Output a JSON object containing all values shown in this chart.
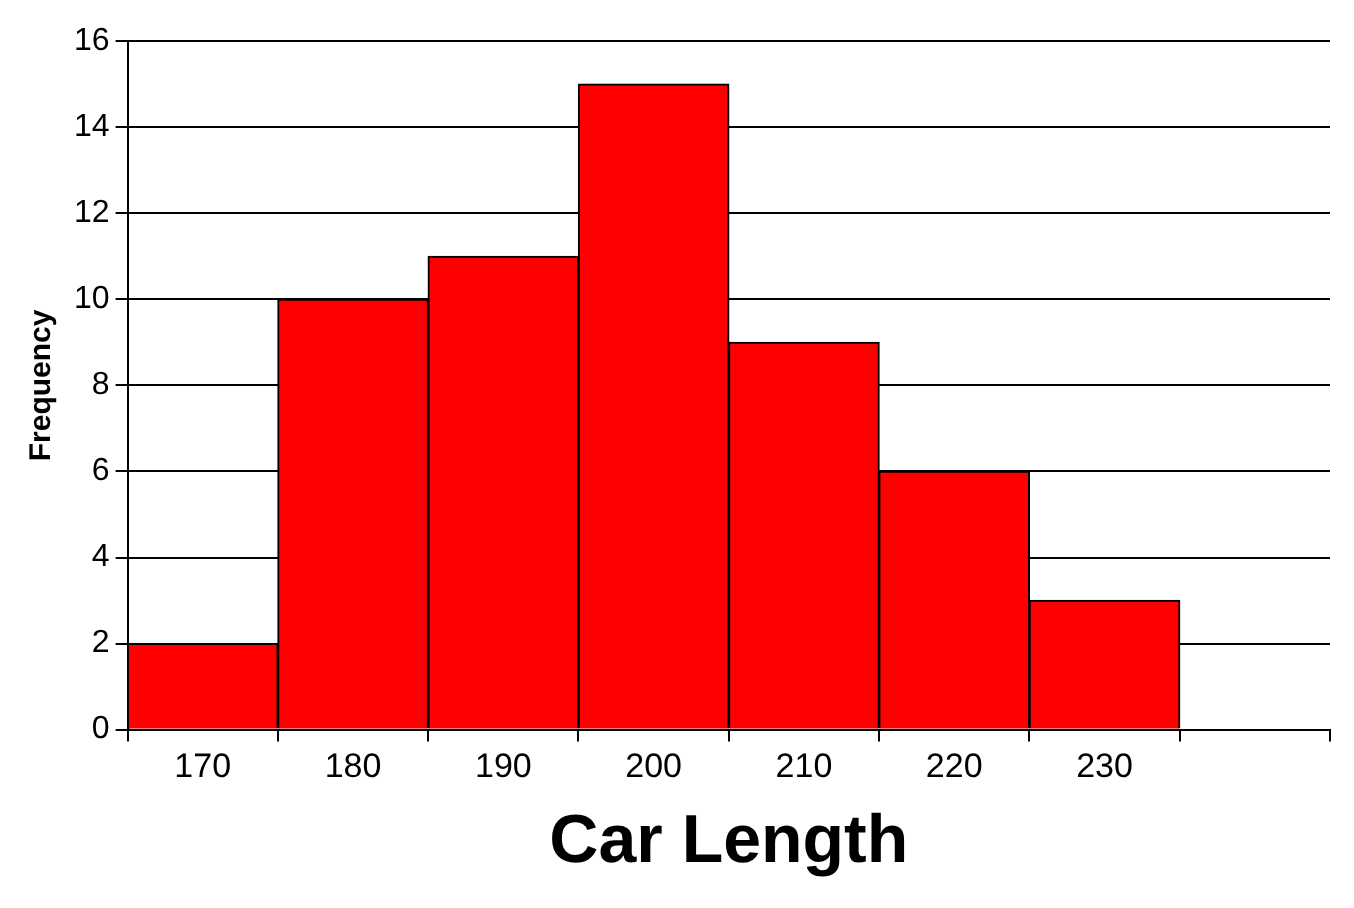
{
  "chart_data": {
    "type": "bar",
    "xlabel": "Car Length",
    "ylabel": "Frequency",
    "categories": [
      "170",
      "180",
      "190",
      "200",
      "210",
      "220",
      "230",
      null
    ],
    "values": [
      2,
      10,
      11,
      15,
      9,
      6,
      3,
      null
    ],
    "color": "#ff0000",
    "ylim": [
      0,
      16
    ],
    "yticks": [
      0,
      2,
      4,
      6,
      8,
      10,
      12,
      14,
      16
    ],
    "grid": "y",
    "legend": false
  }
}
